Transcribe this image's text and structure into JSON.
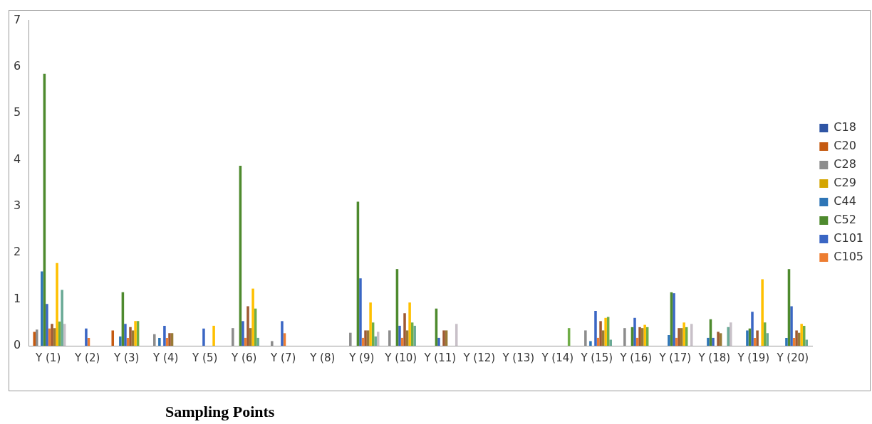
{
  "chart_data": {
    "type": "bar",
    "xlabel": "Sampling Points",
    "categories": [
      "Y (1)",
      "Y (2)",
      "Y (3)",
      "Y (4)",
      "Y (5)",
      "Y (6)",
      "Y (7)",
      "Y (8)",
      "Y (9)",
      "Y (10)",
      "Y (11)",
      "Y (12)",
      "Y (13)",
      "Y (14)",
      "Y (15)",
      "Y (16)",
      "Y (17)",
      "Y (18)",
      "Y (19)",
      "Y (20)"
    ],
    "series": [
      {
        "name": "C18",
        "color": "#2f55a4",
        "values": [
          null,
          null,
          null,
          null,
          null,
          null,
          null,
          null,
          null,
          null,
          null,
          null,
          null,
          null,
          null,
          null,
          null,
          null,
          null,
          null
        ]
      },
      {
        "name": "C20",
        "color": "#c55a11",
        "values": [
          0.3,
          null,
          0.33,
          null,
          null,
          null,
          null,
          null,
          null,
          null,
          null,
          null,
          null,
          null,
          null,
          null,
          null,
          null,
          null,
          null
        ]
      },
      {
        "name": "C28",
        "color": "#8c8c8c",
        "values": [
          0.35,
          null,
          null,
          0.25,
          null,
          0.38,
          0.1,
          null,
          0.28,
          0.33,
          null,
          null,
          null,
          null,
          0.33,
          0.38,
          null,
          null,
          null,
          null
        ]
      },
      {
        "name": "C29",
        "color": "#d4a500",
        "values": [
          null,
          null,
          null,
          null,
          null,
          null,
          null,
          null,
          null,
          null,
          null,
          null,
          null,
          null,
          null,
          null,
          null,
          null,
          null,
          null
        ]
      },
      {
        "name": "C44",
        "color": "#2e75b6",
        "values": [
          1.6,
          null,
          0.2,
          0.17,
          null,
          null,
          null,
          null,
          null,
          null,
          null,
          null,
          null,
          null,
          0.1,
          null,
          0.23,
          0.17,
          0.33,
          0.17
        ]
      },
      {
        "name": "C52",
        "color": "#4e8a2e",
        "values": [
          5.85,
          null,
          1.15,
          null,
          null,
          3.87,
          null,
          null,
          3.1,
          1.65,
          0.8,
          null,
          null,
          null,
          null,
          0.4,
          1.15,
          0.57,
          0.37,
          1.65
        ]
      },
      {
        "name": "C101",
        "color": "#3a66c4",
        "values": [
          0.9,
          0.37,
          0.47,
          0.43,
          0.37,
          0.53,
          0.53,
          null,
          1.45,
          0.43,
          0.17,
          null,
          null,
          null,
          0.75,
          0.6,
          1.13,
          0.17,
          0.73,
          0.85
        ]
      },
      {
        "name": "C105",
        "color": "#ed7d31",
        "values": [
          0.37,
          0.17,
          0.17,
          0.17,
          null,
          0.17,
          0.27,
          null,
          0.17,
          0.17,
          null,
          null,
          null,
          null,
          0.17,
          0.17,
          0.17,
          null,
          0.17,
          0.17
        ]
      },
      {
        "color": "#9e5a32",
        "values": [
          0.47,
          null,
          0.4,
          0.27,
          null,
          0.85,
          null,
          null,
          0.33,
          0.7,
          0.33,
          null,
          null,
          null,
          0.53,
          0.4,
          0.38,
          0.3,
          0.33,
          0.33
        ]
      },
      {
        "color": "#9a7a35",
        "values": [
          0.38,
          null,
          0.33,
          0.27,
          null,
          0.38,
          null,
          null,
          0.33,
          0.33,
          0.33,
          null,
          null,
          null,
          0.33,
          0.38,
          0.38,
          0.27,
          null,
          0.28
        ]
      },
      {
        "color": "#ffc000",
        "values": [
          1.78,
          null,
          0.53,
          null,
          0.43,
          1.23,
          null,
          null,
          0.93,
          0.93,
          null,
          null,
          null,
          null,
          0.6,
          0.45,
          0.5,
          null,
          1.43,
          0.47
        ]
      },
      {
        "color": "#70ad47",
        "values": [
          0.52,
          null,
          0.53,
          null,
          null,
          0.8,
          null,
          null,
          0.5,
          0.5,
          null,
          null,
          null,
          0.38,
          0.62,
          0.4,
          0.4,
          null,
          0.5,
          0.43
        ]
      },
      {
        "color": "#6aaa96",
        "values": [
          1.2,
          null,
          null,
          null,
          null,
          0.17,
          null,
          null,
          0.2,
          0.43,
          null,
          null,
          null,
          null,
          0.13,
          null,
          null,
          0.4,
          0.27,
          0.13
        ]
      },
      {
        "color": "#c8c0c8",
        "values": [
          0.47,
          null,
          null,
          null,
          null,
          null,
          null,
          null,
          0.3,
          null,
          0.47,
          null,
          null,
          null,
          null,
          null,
          0.47,
          0.5,
          null,
          null
        ]
      }
    ],
    "ylim": [
      0,
      7
    ],
    "yticks": [
      0,
      1,
      2,
      3,
      4,
      5,
      6,
      7
    ],
    "grid": false,
    "legend": "right"
  }
}
